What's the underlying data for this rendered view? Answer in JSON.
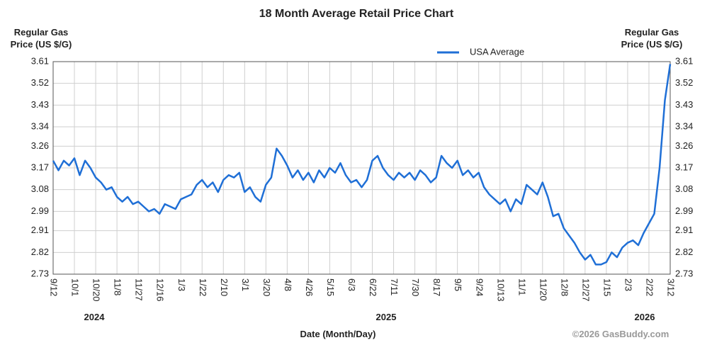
{
  "chart_data": {
    "type": "line",
    "title": "18 Month Average Retail Price Chart",
    "ylabel_lines": [
      "Regular Gas",
      "Price (US $/G)"
    ],
    "y2label_lines": [
      "Regular Gas",
      "Price (US $/G)"
    ],
    "xlabel": "Date (Month/Day)",
    "year_labels": [
      "2024",
      "2025",
      "2026"
    ],
    "credit": "©2026 GasBuddy.com",
    "categories": [
      "9/12",
      null,
      null,
      null,
      "10/1",
      null,
      null,
      null,
      "10/20",
      null,
      null,
      null,
      "11/8",
      null,
      null,
      null,
      "11/27",
      null,
      null,
      null,
      "12/16",
      null,
      null,
      null,
      "1/3",
      null,
      null,
      null,
      "1/22",
      null,
      null,
      null,
      "2/10",
      null,
      null,
      null,
      "3/1",
      null,
      null,
      null,
      "3/20",
      null,
      null,
      null,
      "4/8",
      null,
      null,
      null,
      "4/26",
      null,
      null,
      null,
      "5/15",
      null,
      null,
      null,
      "6/3",
      null,
      null,
      null,
      "6/22",
      null,
      null,
      null,
      "7/11",
      null,
      null,
      null,
      "7/30",
      null,
      null,
      null,
      "8/17",
      null,
      null,
      null,
      "9/5",
      null,
      null,
      null,
      "9/24",
      null,
      null,
      null,
      "10/13",
      null,
      null,
      null,
      "11/1",
      null,
      null,
      null,
      "11/20",
      null,
      null,
      null,
      "12/8",
      null,
      null,
      null,
      "12/27",
      null,
      null,
      null,
      "1/15",
      null,
      null,
      null,
      "2/3",
      null,
      null,
      null,
      "2/22",
      null,
      null,
      null,
      "3/12"
    ],
    "series": [
      {
        "name": "USA Average",
        "color": "#1f6fd6",
        "values": [
          3.2,
          3.16,
          3.2,
          3.18,
          3.21,
          3.14,
          3.2,
          3.17,
          3.13,
          3.11,
          3.08,
          3.09,
          3.05,
          3.03,
          3.05,
          3.02,
          3.03,
          3.01,
          2.99,
          3.0,
          2.98,
          3.02,
          3.01,
          3.0,
          3.04,
          3.05,
          3.06,
          3.1,
          3.12,
          3.09,
          3.11,
          3.07,
          3.12,
          3.14,
          3.13,
          3.15,
          3.07,
          3.09,
          3.05,
          3.03,
          3.1,
          3.13,
          3.25,
          3.22,
          3.18,
          3.13,
          3.16,
          3.12,
          3.15,
          3.11,
          3.16,
          3.13,
          3.17,
          3.15,
          3.19,
          3.14,
          3.11,
          3.12,
          3.09,
          3.12,
          3.2,
          3.22,
          3.17,
          3.14,
          3.12,
          3.15,
          3.13,
          3.15,
          3.12,
          3.16,
          3.14,
          3.11,
          3.13,
          3.22,
          3.19,
          3.17,
          3.2,
          3.14,
          3.16,
          3.13,
          3.15,
          3.09,
          3.06,
          3.04,
          3.02,
          3.04,
          2.99,
          3.04,
          3.02,
          3.1,
          3.08,
          3.06,
          3.11,
          3.05,
          2.97,
          2.98,
          2.92,
          2.89,
          2.86,
          2.82,
          2.79,
          2.81,
          2.77,
          2.77,
          2.78,
          2.82,
          2.8,
          2.84,
          2.86,
          2.87,
          2.85,
          2.9,
          2.94,
          2.98,
          3.17,
          3.45,
          3.6
        ]
      }
    ],
    "ylim": [
      2.73,
      3.61
    ],
    "yticks": [
      2.73,
      2.82,
      2.91,
      2.99,
      3.08,
      3.17,
      3.26,
      3.34,
      3.43,
      3.52,
      3.61
    ],
    "y2lim": [
      2.73,
      3.61
    ],
    "y2ticks": [
      2.73,
      2.82,
      2.91,
      2.99,
      3.08,
      3.17,
      3.26,
      3.34,
      3.43,
      3.52,
      3.61
    ],
    "grid": true,
    "legend": "top"
  }
}
